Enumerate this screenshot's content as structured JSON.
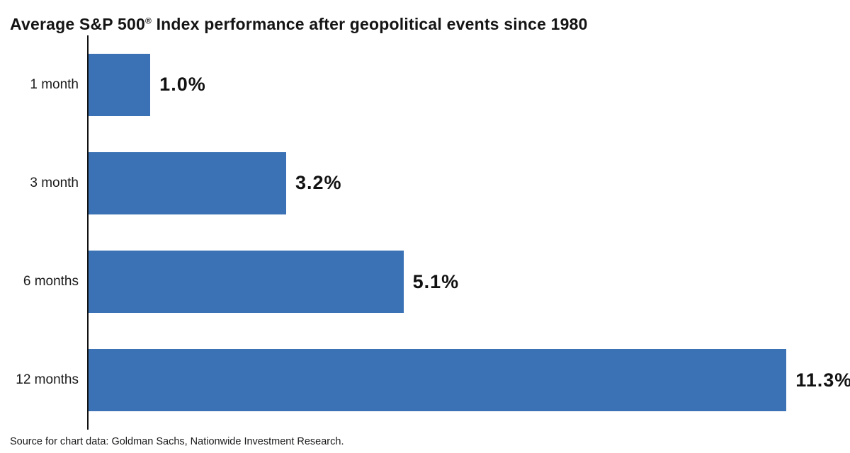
{
  "title": {
    "pre": "Average S&P 500",
    "reg_mark": "®",
    "post": " Index performance after geopolitical events since 1980"
  },
  "source_note": "Source for chart data: Goldman Sachs, Nationwide Investment Research.",
  "colors": {
    "bar": "#3A72B5",
    "axis": "#111111",
    "text": "#1a1a1a"
  },
  "chart_data": {
    "type": "bar",
    "orientation": "horizontal",
    "title": "Average S&P 500® Index performance after geopolitical events since 1980",
    "categories": [
      "1 month",
      "3 month",
      "6 months",
      "12 months"
    ],
    "values": [
      1.0,
      3.2,
      5.1,
      11.3
    ],
    "value_labels": [
      "1.0%",
      "3.2%",
      "5.1%",
      "11.3%"
    ],
    "xlabel": "",
    "ylabel": "",
    "xlim": [
      0,
      12.33
    ],
    "grid": false,
    "legend": false,
    "bar_color": "#3A72B5"
  }
}
